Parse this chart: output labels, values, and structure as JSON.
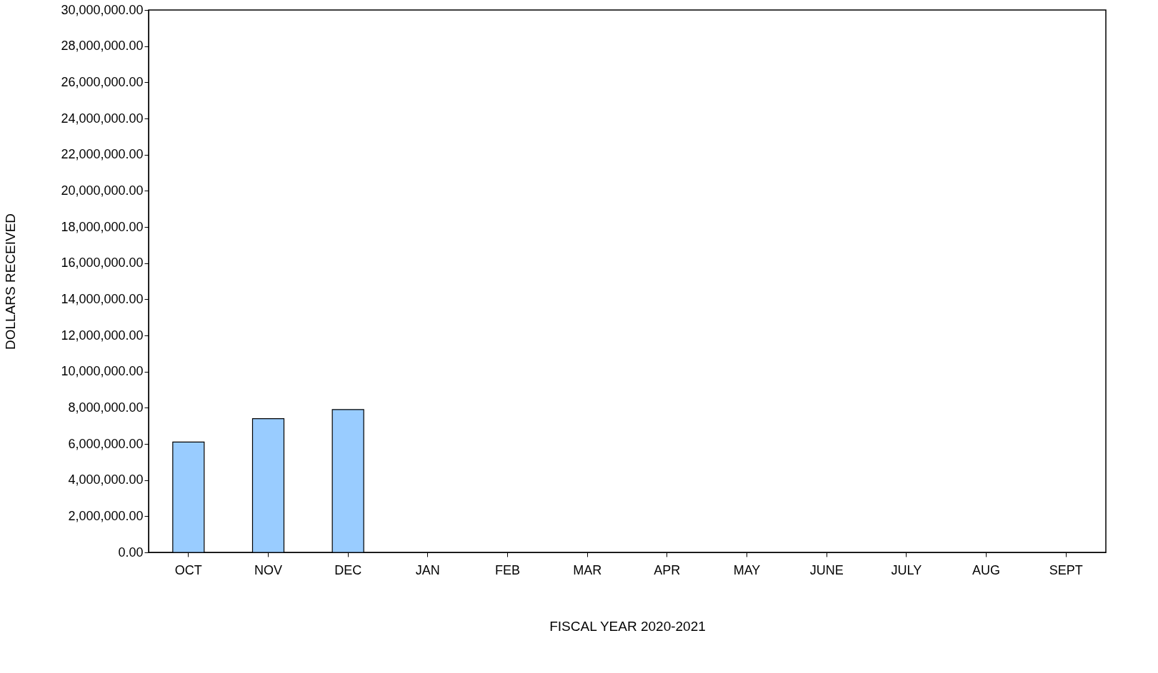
{
  "chart_data": {
    "type": "bar",
    "xlabel": "FISCAL YEAR 2020-2021",
    "ylabel": "DOLLARS RECEIVED",
    "categories": [
      "OCT",
      "NOV",
      "DEC",
      "JAN",
      "FEB",
      "MAR",
      "APR",
      "MAY",
      "JUNE",
      "JULY",
      "AUG",
      "SEPT"
    ],
    "values": [
      6100000,
      7400000,
      7900000,
      null,
      null,
      null,
      null,
      null,
      null,
      null,
      null,
      null
    ],
    "color": "#99ccff",
    "ylim": [
      0,
      30000000
    ],
    "yticks": [
      {
        "value": 0,
        "label": "0.00"
      },
      {
        "value": 2000000,
        "label": "2,000,000.00"
      },
      {
        "value": 4000000,
        "label": "4,000,000.00"
      },
      {
        "value": 6000000,
        "label": "6,000,000.00"
      },
      {
        "value": 8000000,
        "label": "8,000,000.00"
      },
      {
        "value": 10000000,
        "label": "10,000,000.00"
      },
      {
        "value": 12000000,
        "label": "12,000,000.00"
      },
      {
        "value": 14000000,
        "label": "14,000,000.00"
      },
      {
        "value": 16000000,
        "label": "16,000,000.00"
      },
      {
        "value": 18000000,
        "label": "18,000,000.00"
      },
      {
        "value": 20000000,
        "label": "20,000,000.00"
      },
      {
        "value": 22000000,
        "label": "22,000,000.00"
      },
      {
        "value": 24000000,
        "label": "24,000,000.00"
      },
      {
        "value": 26000000,
        "label": "26,000,000.00"
      },
      {
        "value": 28000000,
        "label": "28,000,000.00"
      },
      {
        "value": 30000000,
        "label": "30,000,000.00"
      }
    ],
    "grid": false
  }
}
